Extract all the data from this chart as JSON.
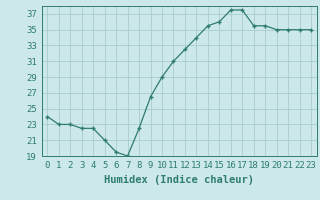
{
  "x": [
    0,
    1,
    2,
    3,
    4,
    5,
    6,
    7,
    8,
    9,
    10,
    11,
    12,
    13,
    14,
    15,
    16,
    17,
    18,
    19,
    20,
    21,
    22,
    23
  ],
  "y": [
    24.0,
    23.0,
    23.0,
    22.5,
    22.5,
    21.0,
    19.5,
    19.0,
    22.5,
    26.5,
    29.0,
    31.0,
    32.5,
    34.0,
    35.5,
    36.0,
    37.5,
    37.5,
    35.5,
    35.5,
    35.0,
    35.0,
    35.0,
    35.0
  ],
  "xlabel": "Humidex (Indice chaleur)",
  "ylim": [
    19,
    38
  ],
  "xlim_min": -0.5,
  "xlim_max": 23.5,
  "yticks": [
    19,
    21,
    23,
    25,
    27,
    29,
    31,
    33,
    35,
    37
  ],
  "xticks": [
    0,
    1,
    2,
    3,
    4,
    5,
    6,
    7,
    8,
    9,
    10,
    11,
    12,
    13,
    14,
    15,
    16,
    17,
    18,
    19,
    20,
    21,
    22,
    23
  ],
  "line_color": "#2e7d6e",
  "bg_color": "#cce8e8",
  "grid_color": "#aacccc",
  "tick_fontsize": 6.5,
  "label_fontsize": 7.5
}
